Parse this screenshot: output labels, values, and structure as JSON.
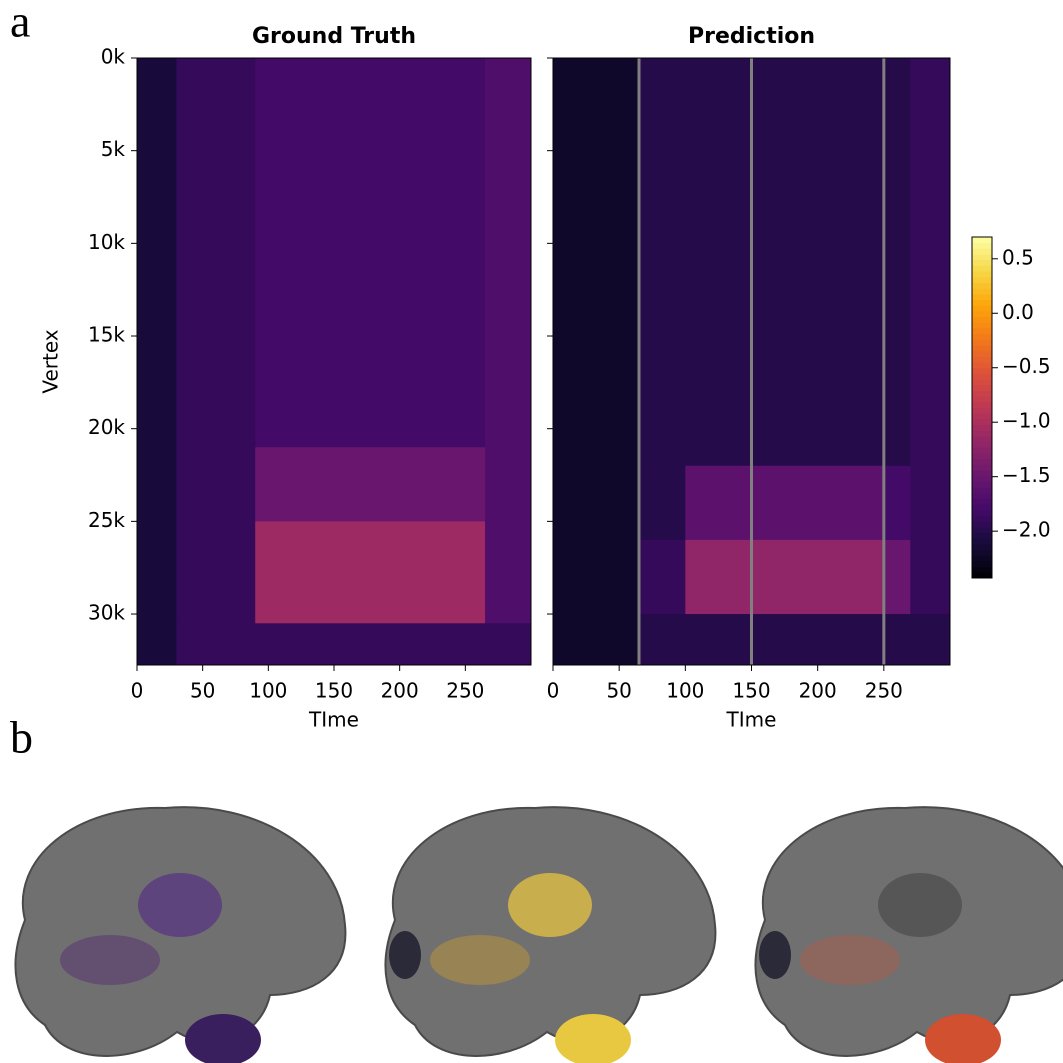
{
  "panel_labels": [
    "a",
    "b"
  ],
  "chart_data": [
    {
      "type": "heatmap",
      "title": "Ground Truth",
      "ylabel": "Vertex",
      "xlabel": "TIme",
      "xlim": [
        0,
        300
      ],
      "ylim": [
        32750,
        0
      ],
      "xticks": [
        0,
        50,
        100,
        150,
        200,
        250
      ],
      "yticks": [
        {
          "value": 0,
          "label": "0k"
        },
        {
          "value": 5000,
          "label": "5k"
        },
        {
          "value": 10000,
          "label": "10k"
        },
        {
          "value": 15000,
          "label": "15k"
        },
        {
          "value": 20000,
          "label": "20k"
        },
        {
          "value": 25000,
          "label": "25k"
        },
        {
          "value": 30000,
          "label": "30k"
        }
      ],
      "colormap": "inferno",
      "x_edges": [
        0,
        30,
        90,
        265,
        300
      ],
      "y_edges": [
        0,
        21000,
        25000,
        30500,
        32750
      ],
      "z": [
        [
          -2.1,
          -1.9,
          -1.8,
          -1.7
        ],
        [
          -2.1,
          -1.9,
          -1.5,
          -1.7
        ],
        [
          -2.1,
          -1.9,
          -1.1,
          -1.7
        ],
        [
          -2.1,
          -1.9,
          -1.9,
          -1.9
        ]
      ]
    },
    {
      "type": "heatmap",
      "title": "Prediction",
      "xlabel": "TIme",
      "sharey": true,
      "xlim": [
        0,
        300
      ],
      "ylim": [
        32750,
        0
      ],
      "xticks": [
        0,
        50,
        100,
        150,
        200,
        250
      ],
      "colormap": "inferno",
      "x_edges": [
        0,
        65,
        100,
        250,
        270,
        300
      ],
      "y_edges": [
        0,
        22000,
        26000,
        30000,
        32750
      ],
      "z": [
        [
          -2.2,
          -2.0,
          -2.0,
          -2.0,
          -1.9
        ],
        [
          -2.2,
          -2.0,
          -1.6,
          -1.8,
          -1.9
        ],
        [
          -2.2,
          -1.9,
          -1.2,
          -1.5,
          -1.9
        ],
        [
          -2.2,
          -2.0,
          -2.0,
          -2.0,
          -2.0
        ]
      ],
      "vlines": [
        65,
        150,
        250
      ],
      "vline_color": "#808080",
      "colorbar": {
        "clim": [
          -2.43,
          0.7
        ],
        "ticks": [
          {
            "value": 0.5,
            "label": "0.5"
          },
          {
            "value": 0,
            "label": "0.0"
          },
          {
            "value": -0.5,
            "label": "−0.5"
          },
          {
            "value": -1,
            "label": "−1.0"
          },
          {
            "value": -1.5,
            "label": "−1.5"
          },
          {
            "value": -2,
            "label": "−2.0"
          }
        ]
      }
    }
  ]
}
